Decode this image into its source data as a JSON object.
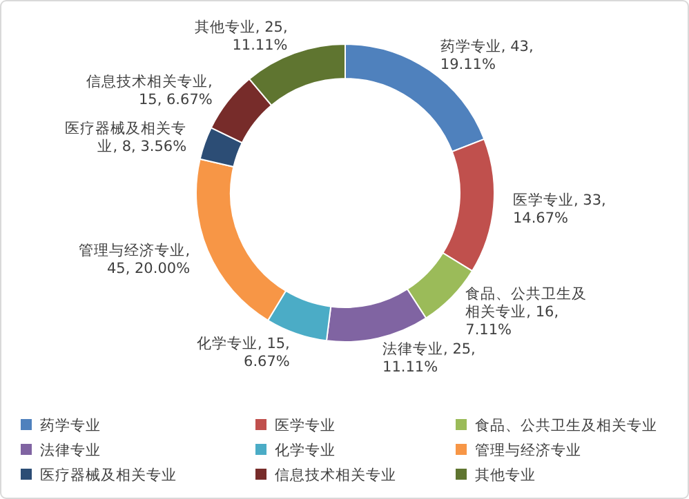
{
  "chart_data": {
    "type": "donut",
    "categories": [
      "药学专业",
      "医学专业",
      "食品、公共卫生及相关专业",
      "法律专业",
      "化学专业",
      "管理与经济专业",
      "医疗器械及相关专业",
      "信息技术相关专业",
      "其他专业"
    ],
    "values": [
      43,
      33,
      16,
      25,
      15,
      45,
      8,
      15,
      25
    ],
    "colors": [
      "#4f81bd",
      "#c0504d",
      "#9bbb59",
      "#8064a2",
      "#4bacc6",
      "#f79646",
      "#2c4d75",
      "#772c2a",
      "#5f7530"
    ],
    "value_labels": [
      "药学专业, 43, 19.11%",
      "医学专业, 33, 14.67%",
      "食品、公共卫生及相关专业, 16, 7.11%",
      "法律专业, 25, 11.11%",
      "化学专业, 15, 6.67%",
      "管理与经济专业, 45, 20.00%",
      "医疗器械及相关专业, 8, 3.56%",
      "信息技术相关专业, 15, 6.67%",
      "其他专业, 25, 11.11%"
    ],
    "legend": "bottom"
  }
}
